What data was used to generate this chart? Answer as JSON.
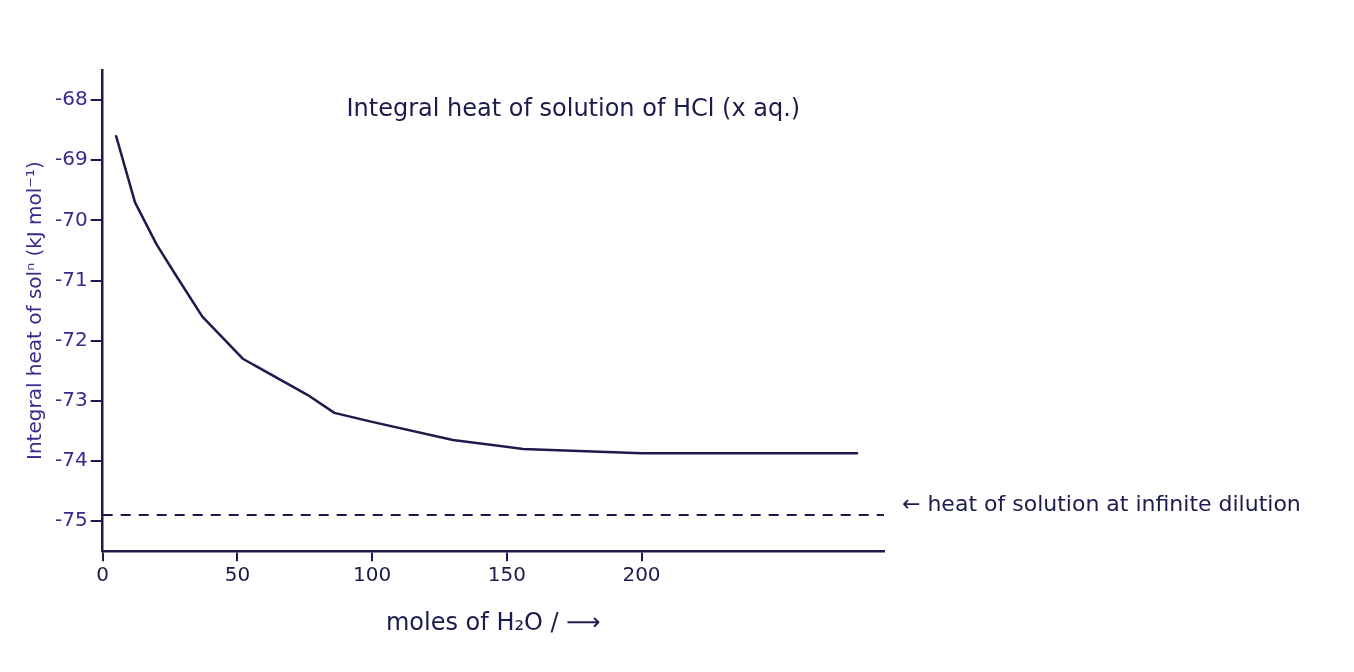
{
  "chart_data": {
    "type": "line",
    "xlabel": "moles of H₂O / ⟶",
    "ylabel": "Integral heat of solⁿ (kJ mol⁻¹)",
    "annotations": [
      "Integral heat of solution of HCl (x aq.)"
    ],
    "x": [
      5,
      12,
      20,
      27,
      37,
      52,
      76,
      86,
      100,
      130,
      156,
      200,
      240,
      280
    ],
    "series": [
      {
        "color": "#1c1c4c",
        "values": [
          -68.6,
          -69.7,
          -70.4,
          -70.9,
          -71.6,
          -72.3,
          -72.9,
          -73.2,
          -73.35,
          -73.65,
          -73.8,
          -73.87,
          -73.87,
          -73.87
        ]
      }
    ],
    "xlim": [
      0,
      290
    ],
    "xticks": [
      0,
      50,
      100,
      150,
      200
    ],
    "ylim": [
      -75.5,
      -67.5
    ],
    "yticks": [
      -68,
      -69,
      -70,
      -71,
      -72,
      -73,
      -74,
      -75
    ],
    "ref_lines": [
      {
        "axis": "y",
        "value": -74.9,
        "label": "← heat of solution at infinite dilution",
        "color": "#1c1c4c",
        "line_style": "dashed"
      }
    ],
    "grid": false,
    "legend": false,
    "marker": "none",
    "line_style": "solid"
  }
}
